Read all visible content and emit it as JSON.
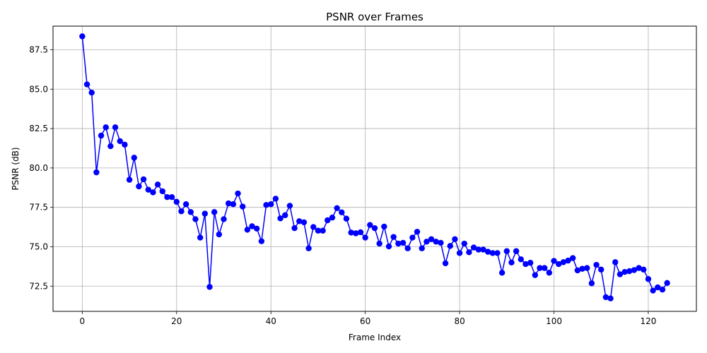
{
  "chart_data": {
    "type": "line",
    "title": "PSNR over Frames",
    "xlabel": "Frame Index",
    "ylabel": "PSNR (dB)",
    "xlim": [
      -6.2,
      130.2
    ],
    "ylim": [
      70.9,
      89.0
    ],
    "xticks": [
      0,
      20,
      40,
      60,
      80,
      100,
      120
    ],
    "yticks": [
      72.5,
      75.0,
      77.5,
      80.0,
      82.5,
      85.0,
      87.5
    ],
    "ytick_labels": [
      "72.5",
      "75.0",
      "77.5",
      "80.0",
      "82.5",
      "85.0",
      "87.5"
    ],
    "grid": true,
    "marker": "circle",
    "colors": {
      "series": "#0000ff",
      "grid": "#b0b0b0",
      "axis": "#000000"
    },
    "series": [
      {
        "x": [
          0,
          1,
          2,
          3,
          4,
          5,
          6,
          7,
          8,
          9,
          10,
          11,
          12,
          13,
          14,
          15,
          16,
          17,
          18,
          19,
          20,
          21,
          22,
          23,
          24,
          25,
          26,
          27,
          28,
          29,
          30,
          31,
          32,
          33,
          34,
          35,
          36,
          37,
          38,
          39,
          40,
          41,
          42,
          43,
          44,
          45,
          46,
          47,
          48,
          49,
          50,
          51,
          52,
          53,
          54,
          55,
          56,
          57,
          58,
          59,
          60,
          61,
          62,
          63,
          64,
          65,
          66,
          67,
          68,
          69,
          70,
          71,
          72,
          73,
          74,
          75,
          76,
          77,
          78,
          79,
          80,
          81,
          82,
          83,
          84,
          85,
          86,
          87,
          88,
          89,
          90,
          91,
          92,
          93,
          94,
          95,
          96,
          97,
          98,
          99,
          100,
          101,
          102,
          103,
          104,
          105,
          106,
          107,
          108,
          109,
          110,
          111,
          112,
          113,
          114,
          115,
          116,
          117,
          118,
          119,
          120,
          121,
          122,
          123,
          124
        ],
        "y": [
          88.35,
          85.3,
          84.78,
          79.72,
          82.05,
          82.58,
          81.38,
          82.58,
          81.7,
          81.48,
          79.25,
          80.65,
          78.83,
          79.28,
          78.62,
          78.45,
          78.95,
          78.52,
          78.15,
          78.15,
          77.85,
          77.25,
          77.7,
          77.2,
          76.75,
          75.58,
          77.1,
          72.45,
          77.2,
          75.78,
          76.75,
          77.75,
          77.7,
          78.38,
          77.55,
          76.08,
          76.3,
          76.15,
          75.35,
          77.65,
          77.7,
          78.05,
          76.8,
          77.0,
          77.6,
          76.18,
          76.62,
          76.55,
          74.9,
          76.25,
          76.02,
          76.02,
          76.68,
          76.85,
          77.45,
          77.18,
          76.78,
          75.9,
          75.85,
          75.92,
          75.58,
          76.38,
          76.18,
          75.2,
          76.28,
          75.02,
          75.62,
          75.2,
          75.25,
          74.9,
          75.58,
          75.95,
          74.9,
          75.32,
          75.48,
          75.32,
          75.25,
          73.95,
          75.05,
          75.48,
          74.6,
          75.2,
          74.65,
          74.95,
          74.82,
          74.82,
          74.68,
          74.6,
          74.6,
          73.35,
          74.72,
          74.0,
          74.72,
          74.2,
          73.9,
          73.98,
          73.2,
          73.65,
          73.65,
          73.35,
          74.1,
          73.9,
          74.02,
          74.12,
          74.28,
          73.5,
          73.6,
          73.65,
          72.68,
          73.85,
          73.55,
          71.8,
          71.72,
          74.02,
          73.25,
          73.4,
          73.45,
          73.52,
          73.65,
          73.55,
          72.95,
          72.22,
          72.42,
          72.28,
          72.7
        ]
      }
    ]
  }
}
